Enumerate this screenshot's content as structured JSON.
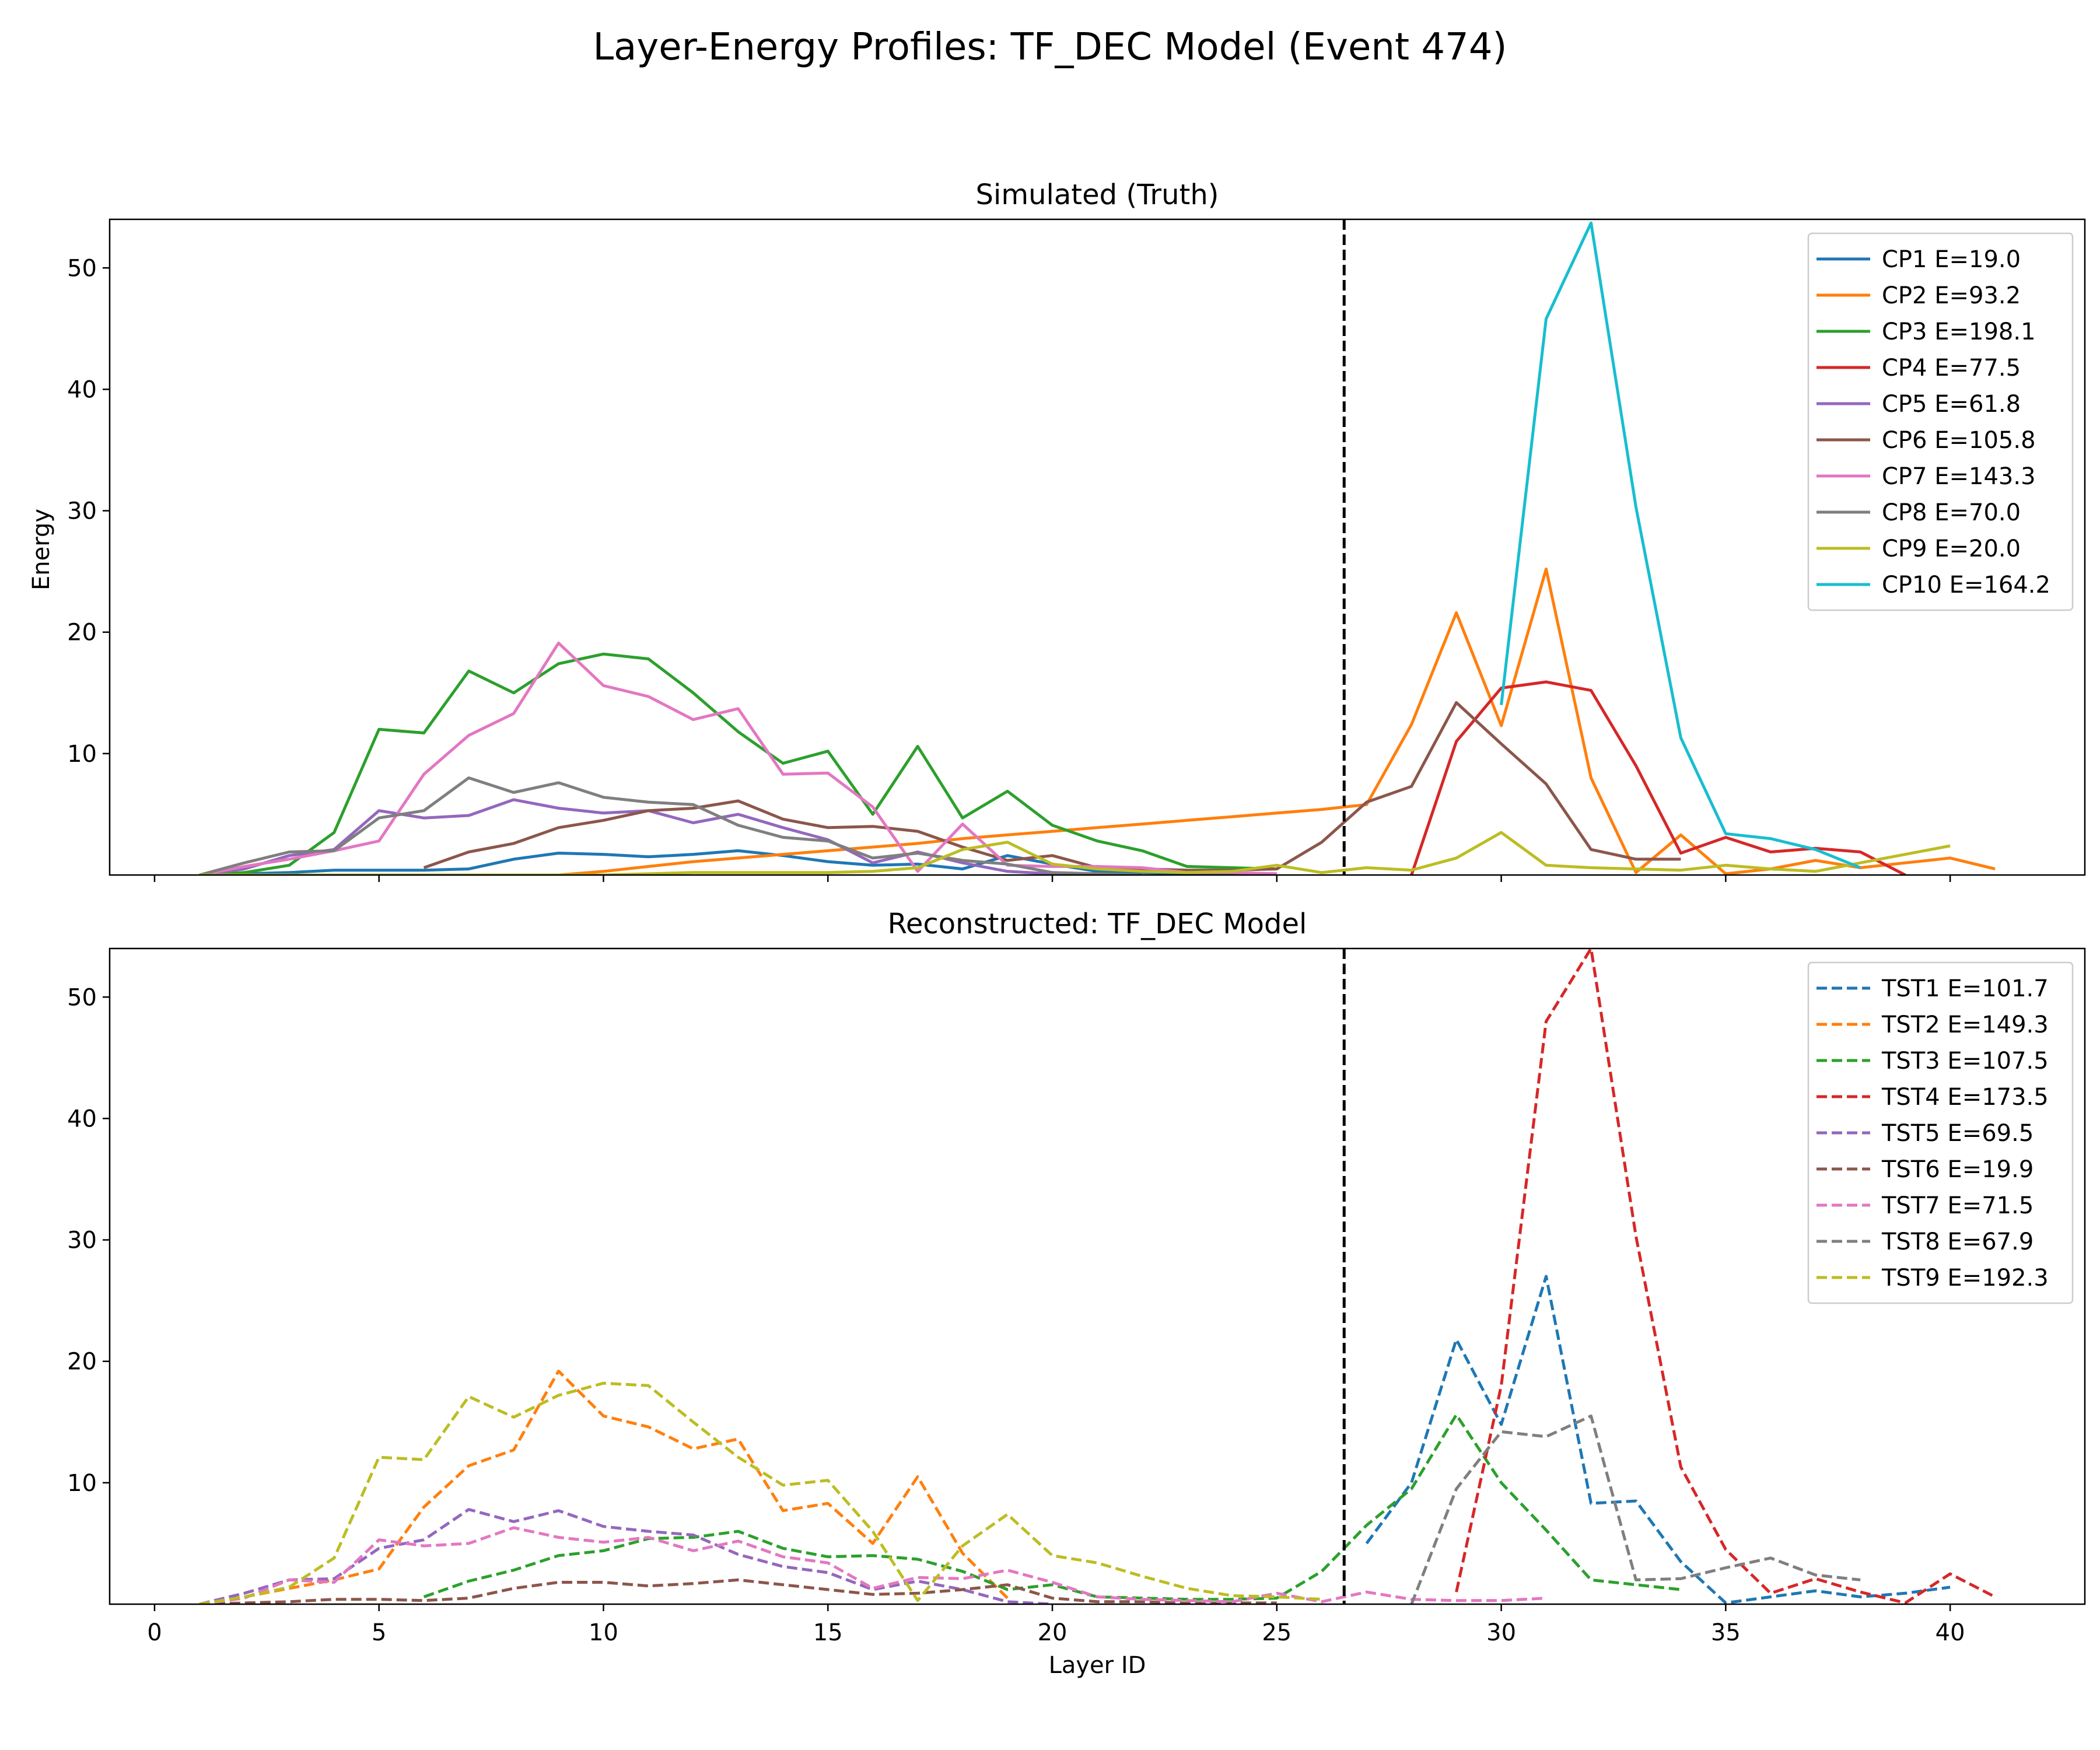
{
  "chart_data": [
    {
      "type": "line",
      "suptitle": "Layer-Energy Profiles: TF_DEC Model (Event 474)",
      "title": "Simulated (Truth)",
      "xlabel": "",
      "ylabel": "Energy",
      "xlim": [
        -1,
        43
      ],
      "ylim": [
        0,
        54
      ],
      "xticks": [
        0,
        5,
        10,
        15,
        20,
        25,
        30,
        35,
        40
      ],
      "yticks": [
        10,
        20,
        30,
        40,
        50
      ],
      "tick_labels_x_visible": false,
      "vline_x": 26.5,
      "legend": "top-right",
      "grid": false,
      "series": [
        {
          "name": "CP1 E=19.0",
          "color": "#1f77b4",
          "dash": false,
          "x": [
            1,
            2,
            3,
            4,
            5,
            6,
            7,
            8,
            9,
            10,
            11,
            12,
            13,
            14,
            15,
            16,
            17,
            18,
            19,
            20,
            21,
            22,
            23,
            24,
            25
          ],
          "y": [
            0,
            0.1,
            0.2,
            0.4,
            0.4,
            0.4,
            0.5,
            1.3,
            1.8,
            1.7,
            1.5,
            1.7,
            2.0,
            1.6,
            1.1,
            0.8,
            0.9,
            0.5,
            1.6,
            0.9,
            0.3,
            0.2,
            0.1,
            0.1,
            0.1
          ]
        },
        {
          "name": "CP2 E=93.2",
          "color": "#ff7f0e",
          "dash": false,
          "x": [
            9,
            10,
            11,
            12,
            13,
            14,
            15,
            16,
            17,
            18,
            19,
            20,
            21,
            22,
            23,
            24,
            25,
            26,
            27,
            28,
            29,
            30,
            31,
            32,
            33,
            34,
            35,
            36,
            37,
            38,
            39,
            40,
            41
          ],
          "y": [
            0,
            0.3,
            0.7,
            1.1,
            1.4,
            1.7,
            2.0,
            2.3,
            2.6,
            3.0,
            3.3,
            3.6,
            3.9,
            4.2,
            4.5,
            4.8,
            5.1,
            5.4,
            5.8,
            12.4,
            21.6,
            12.3,
            25.2,
            8.0,
            0.2,
            3.3,
            0.1,
            0.5,
            1.2,
            0.6,
            1.0,
            1.4,
            0.5
          ]
        },
        {
          "name": "CP3 E=198.1",
          "color": "#2ca02c",
          "dash": false,
          "x": [
            1,
            2,
            3,
            4,
            5,
            6,
            7,
            8,
            9,
            10,
            11,
            12,
            13,
            14,
            15,
            16,
            17,
            18,
            19,
            20,
            21,
            22,
            23,
            24,
            25
          ],
          "y": [
            0,
            0.2,
            0.8,
            3.5,
            12.0,
            11.7,
            16.8,
            15.0,
            17.4,
            18.2,
            17.8,
            15.0,
            11.8,
            9.2,
            10.2,
            5.0,
            10.6,
            4.7,
            6.9,
            4.1,
            2.8,
            2.0,
            0.7,
            0.6,
            0.5
          ]
        },
        {
          "name": "CP4 E=77.5",
          "color": "#d62728",
          "dash": false,
          "x": [
            28,
            29,
            30,
            31,
            32,
            33,
            34,
            35,
            36,
            37,
            38,
            39
          ],
          "y": [
            0,
            11.0,
            15.4,
            15.9,
            15.2,
            9.0,
            1.8,
            3.1,
            1.9,
            2.2,
            1.9,
            0
          ]
        },
        {
          "name": "CP5 E=61.8",
          "color": "#9467bd",
          "dash": false,
          "x": [
            1,
            2,
            3,
            4,
            5,
            6,
            7,
            8,
            9,
            10,
            11,
            12,
            13,
            14,
            15,
            16,
            17,
            18,
            19,
            20,
            21
          ],
          "y": [
            0,
            0.5,
            1.6,
            2.1,
            5.3,
            4.7,
            4.9,
            6.2,
            5.5,
            5.1,
            5.3,
            4.3,
            5.0,
            3.9,
            2.9,
            1.0,
            1.9,
            1.0,
            0.3,
            0.1,
            0
          ]
        },
        {
          "name": "CP6 E=105.8",
          "color": "#8c564b",
          "dash": false,
          "x": [
            6,
            7,
            8,
            9,
            10,
            11,
            12,
            13,
            14,
            15,
            16,
            17,
            18,
            19,
            20,
            21,
            22,
            23,
            24,
            25,
            26,
            27,
            28,
            29,
            30,
            31,
            32,
            33,
            34
          ],
          "y": [
            0.6,
            1.9,
            2.6,
            3.9,
            4.5,
            5.3,
            5.5,
            6.1,
            4.6,
            3.9,
            4.0,
            3.6,
            2.3,
            1.2,
            1.6,
            0.6,
            0.5,
            0.4,
            0.4,
            0.5,
            2.7,
            6.0,
            7.3,
            14.2,
            10.8,
            7.5,
            2.1,
            1.3,
            1.3
          ]
        },
        {
          "name": "CP7 E=143.3",
          "color": "#e377c2",
          "dash": false,
          "x": [
            1,
            2,
            3,
            4,
            5,
            6,
            7,
            8,
            9,
            10,
            11,
            12,
            13,
            14,
            15,
            16,
            17,
            18,
            19,
            20,
            21,
            22,
            23,
            24,
            25
          ],
          "y": [
            0,
            0.7,
            1.3,
            2.0,
            2.8,
            8.3,
            11.5,
            13.3,
            19.1,
            15.6,
            14.7,
            12.8,
            13.7,
            8.3,
            8.4,
            5.6,
            0.3,
            4.2,
            0.8,
            0.7,
            0.7,
            0.6,
            0.2,
            0.2,
            0.1
          ]
        },
        {
          "name": "CP8 E=70.0",
          "color": "#7f7f7f",
          "dash": false,
          "x": [
            1,
            2,
            3,
            4,
            5,
            6,
            7,
            8,
            9,
            10,
            11,
            12,
            13,
            14,
            15,
            16,
            17,
            18,
            19,
            20,
            21,
            22
          ],
          "y": [
            0,
            1.0,
            1.9,
            2.0,
            4.7,
            5.3,
            8.0,
            6.8,
            7.6,
            6.4,
            6.0,
            5.8,
            4.1,
            3.1,
            2.8,
            1.4,
            1.8,
            1.2,
            0.9,
            0.2,
            0.1,
            0
          ]
        },
        {
          "name": "CP9 E=20.0",
          "color": "#bcbd22",
          "dash": false,
          "x": [
            1,
            2,
            3,
            4,
            5,
            6,
            7,
            8,
            9,
            10,
            11,
            12,
            13,
            14,
            15,
            16,
            17,
            18,
            19,
            20,
            21,
            22,
            23,
            24,
            25,
            26,
            27,
            28,
            29,
            30,
            31,
            32,
            33,
            34,
            35,
            36,
            37,
            38,
            39,
            40
          ],
          "y": [
            0,
            0,
            0,
            0,
            0,
            0,
            0,
            0,
            0,
            0,
            0.1,
            0.2,
            0.2,
            0.2,
            0.2,
            0.3,
            0.6,
            2.1,
            2.7,
            0.9,
            0.5,
            0.3,
            0.2,
            0.3,
            0.8,
            0.2,
            0.6,
            0.4,
            1.4,
            3.5,
            0.8,
            0.6,
            0.5,
            0.4,
            0.8,
            0.5,
            0.3,
            1.0,
            1.7,
            2.4
          ]
        },
        {
          "name": "CP10 E=164.2",
          "color": "#17becf",
          "dash": false,
          "x": [
            30,
            31,
            32,
            33,
            34,
            35,
            36,
            37,
            38
          ],
          "y": [
            14.0,
            45.8,
            53.7,
            30.3,
            11.3,
            3.4,
            3.0,
            2.1,
            0.6
          ]
        }
      ]
    },
    {
      "type": "line",
      "title": "Reconstructed: TF_DEC Model",
      "xlabel": "Layer ID",
      "ylabel": "",
      "xlim": [
        -1,
        43
      ],
      "ylim": [
        0,
        54
      ],
      "xticks": [
        0,
        5,
        10,
        15,
        20,
        25,
        30,
        35,
        40
      ],
      "yticks": [
        10,
        20,
        30,
        40,
        50
      ],
      "tick_labels_x_visible": true,
      "vline_x": 26.5,
      "legend": "top-right",
      "grid": false,
      "series": [
        {
          "name": "TST1 E=101.7",
          "color": "#1f77b4",
          "dash": true,
          "x": [
            27,
            28,
            29,
            30,
            31,
            32,
            33,
            34,
            35,
            36,
            37,
            38,
            39,
            40
          ],
          "y": [
            5.0,
            10.0,
            21.8,
            14.8,
            27.0,
            8.3,
            8.5,
            3.5,
            0.1,
            0.6,
            1.1,
            0.6,
            0.9,
            1.4
          ]
        },
        {
          "name": "TST2 E=149.3",
          "color": "#ff7f0e",
          "dash": true,
          "x": [
            1,
            2,
            3,
            4,
            5,
            6,
            7,
            8,
            9,
            10,
            11,
            12,
            13,
            14,
            15,
            16,
            17,
            18,
            19
          ],
          "y": [
            0,
            0.6,
            1.3,
            2.0,
            2.9,
            8.0,
            11.4,
            12.7,
            19.2,
            15.5,
            14.6,
            12.8,
            13.6,
            7.7,
            8.3,
            5.0,
            10.5,
            4.2,
            0.5
          ]
        },
        {
          "name": "TST3 E=107.5",
          "color": "#2ca02c",
          "dash": true,
          "x": [
            6,
            7,
            8,
            9,
            10,
            11,
            12,
            13,
            14,
            15,
            16,
            17,
            18,
            19,
            20,
            21,
            22,
            23,
            24,
            25,
            26,
            27,
            28,
            29,
            30,
            31,
            32,
            33,
            34
          ],
          "y": [
            0.6,
            1.9,
            2.8,
            4.0,
            4.4,
            5.4,
            5.5,
            6.0,
            4.6,
            3.9,
            4.0,
            3.7,
            2.7,
            1.2,
            1.6,
            0.6,
            0.5,
            0.4,
            0.4,
            0.5,
            2.7,
            6.5,
            9.5,
            15.6,
            10.0,
            6.1,
            2.0,
            1.6,
            1.2
          ]
        },
        {
          "name": "TST4 E=173.5",
          "color": "#d62728",
          "dash": true,
          "x": [
            29,
            30,
            31,
            32,
            33,
            34,
            35,
            36,
            37,
            38,
            39,
            40,
            41
          ],
          "y": [
            1.0,
            18.0,
            48.0,
            54.0,
            30.3,
            11.3,
            4.5,
            0.9,
            2.1,
            1.0,
            0.1,
            2.5,
            0.6
          ]
        },
        {
          "name": "TST5 E=69.5",
          "color": "#9467bd",
          "dash": true,
          "x": [
            1,
            2,
            3,
            4,
            5,
            6,
            7,
            8,
            9,
            10,
            11,
            12,
            13,
            14,
            15,
            16,
            17,
            18,
            19,
            20
          ],
          "y": [
            0,
            0.9,
            2.0,
            2.1,
            4.6,
            5.3,
            7.8,
            6.8,
            7.7,
            6.4,
            6.0,
            5.7,
            4.1,
            3.1,
            2.6,
            1.2,
            1.9,
            1.2,
            0.2,
            0
          ]
        },
        {
          "name": "TST6 E=19.9",
          "color": "#8c564b",
          "dash": true,
          "x": [
            1,
            2,
            3,
            4,
            5,
            6,
            7,
            8,
            9,
            10,
            11,
            12,
            13,
            14,
            15,
            16,
            17,
            18,
            19,
            20,
            21,
            22,
            23,
            24,
            25
          ],
          "y": [
            0,
            0.1,
            0.2,
            0.4,
            0.4,
            0.3,
            0.5,
            1.3,
            1.8,
            1.8,
            1.5,
            1.7,
            2.0,
            1.6,
            1.2,
            0.8,
            0.9,
            1.2,
            1.6,
            0.5,
            0.2,
            0.2,
            0.1,
            0.1,
            0.1
          ]
        },
        {
          "name": "TST7 E=71.5",
          "color": "#e377c2",
          "dash": true,
          "x": [
            1,
            2,
            3,
            4,
            5,
            6,
            7,
            8,
            9,
            10,
            11,
            12,
            13,
            14,
            15,
            16,
            17,
            18,
            19,
            20,
            21,
            22,
            23,
            24,
            25,
            26,
            27,
            28,
            29,
            30,
            31
          ],
          "y": [
            0,
            0.5,
            2.0,
            1.8,
            5.3,
            4.8,
            5.0,
            6.3,
            5.5,
            5.1,
            5.5,
            4.4,
            5.2,
            3.9,
            3.4,
            1.3,
            2.2,
            2.1,
            2.8,
            1.8,
            0.6,
            0.4,
            0.3,
            0.2,
            0.9,
            0.2,
            1.0,
            0.4,
            0.3,
            0.3,
            0.5
          ]
        },
        {
          "name": "TST8 E=67.9",
          "color": "#7f7f7f",
          "dash": true,
          "x": [
            28,
            29,
            30,
            31,
            32,
            33,
            34,
            35,
            36,
            37,
            38
          ],
          "y": [
            0,
            9.5,
            14.2,
            13.8,
            15.5,
            2.0,
            2.1,
            3.0,
            3.8,
            2.4,
            2.0
          ]
        },
        {
          "name": "TST9 E=192.3",
          "color": "#bcbd22",
          "dash": true,
          "x": [
            1,
            2,
            3,
            4,
            5,
            6,
            7,
            8,
            9,
            10,
            11,
            12,
            13,
            14,
            15,
            16,
            17,
            18,
            19,
            20,
            21,
            22,
            23,
            24,
            25,
            26
          ],
          "y": [
            0,
            0.6,
            1.4,
            3.8,
            12.1,
            11.9,
            17.1,
            15.4,
            17.2,
            18.2,
            18.0,
            15.0,
            12.1,
            9.8,
            10.2,
            6.0,
            0.3,
            4.8,
            7.4,
            4.0,
            3.4,
            2.3,
            1.3,
            0.7,
            0.6,
            0.4
          ]
        }
      ]
    }
  ]
}
